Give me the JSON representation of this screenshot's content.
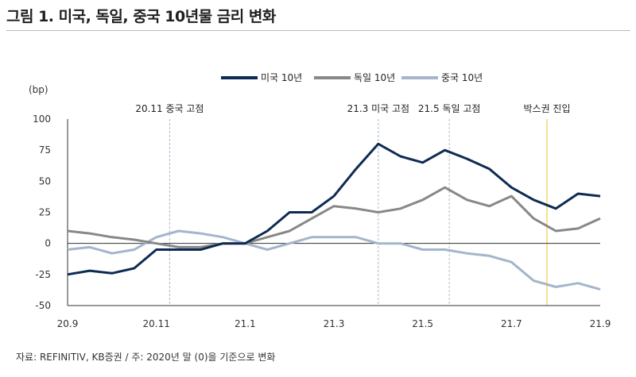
{
  "figure_title": "그림 1. 미국, 독일, 중국 10년물 금리 변화",
  "source": "자료: REFINITIV, KB증권 / 주: 2020년 말 (0)을 기준으로 변화",
  "chart_data": {
    "type": "line",
    "ylabel": "(bp)",
    "ylim": [
      -50,
      100
    ],
    "yticks": [
      100,
      75,
      50,
      25,
      0,
      -25,
      -50
    ],
    "xlim": [
      0,
      12
    ],
    "xticks": [
      0,
      2,
      4,
      6,
      8,
      10,
      12
    ],
    "xtick_labels": [
      "20.9",
      "20.11",
      "21.1",
      "21.3",
      "21.5",
      "21.7",
      "21.9"
    ],
    "grid": false,
    "legend_position": "top",
    "colors": {
      "us": "#0d2b52",
      "de": "#888888",
      "cn": "#a4b5cc",
      "box": "#f5d76e",
      "annotation_line": "#a9b8cf"
    },
    "annotations": [
      {
        "label": "20.11 중국 고점",
        "x": 2.3,
        "style": "dashed"
      },
      {
        "label": "21.3 미국 고점",
        "x": 7.0,
        "style": "dashed"
      },
      {
        "label": "21.5 독일 고점",
        "x": 8.6,
        "style": "dashed"
      },
      {
        "label": "박스권 진입",
        "x": 10.8,
        "style": "solid"
      }
    ],
    "x": [
      0,
      0.5,
      1,
      1.5,
      2,
      2.5,
      3,
      3.5,
      4,
      4.5,
      5,
      5.5,
      6,
      6.5,
      7,
      7.5,
      8,
      8.5,
      9,
      9.5,
      10,
      10.5,
      11,
      11.5,
      12
    ],
    "series": [
      {
        "key": "us",
        "name": "미국 10년",
        "values": [
          -25,
          -22,
          -24,
          -20,
          -5,
          -5,
          -5,
          0,
          0,
          10,
          25,
          25,
          38,
          60,
          80,
          70,
          65,
          75,
          68,
          60,
          45,
          35,
          28,
          40,
          38
        ]
      },
      {
        "key": "de",
        "name": "독일 10년",
        "values": [
          10,
          8,
          5,
          3,
          0,
          -3,
          -3,
          0,
          0,
          5,
          10,
          20,
          30,
          28,
          25,
          28,
          35,
          45,
          35,
          30,
          38,
          20,
          10,
          12,
          20
        ]
      },
      {
        "key": "cn",
        "name": "중국 10년",
        "values": [
          -5,
          -3,
          -8,
          -5,
          5,
          10,
          8,
          5,
          0,
          -5,
          0,
          5,
          5,
          5,
          0,
          0,
          -5,
          -5,
          -8,
          -10,
          -15,
          -30,
          -35,
          -32,
          -37
        ]
      }
    ]
  }
}
